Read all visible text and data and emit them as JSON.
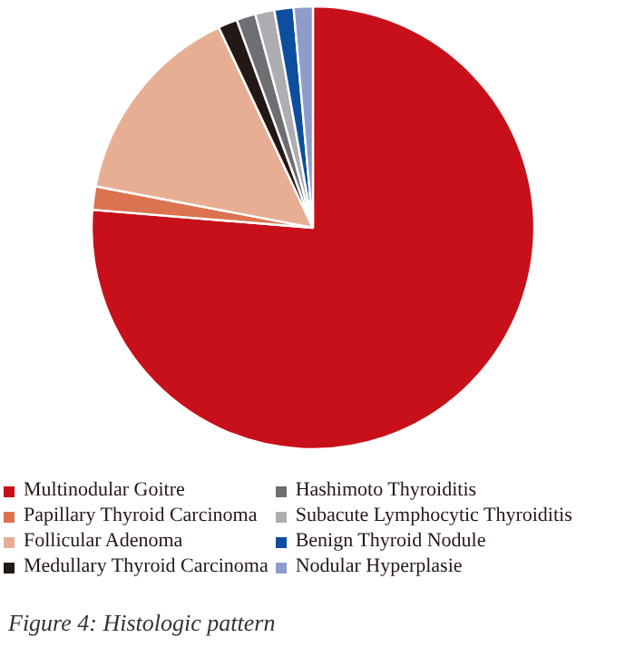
{
  "chart_data": {
    "type": "pie",
    "categories": [
      "Multinodular Goitre",
      "Papillary Thyroid Carcinoma",
      "Follicular Adenoma",
      "Medullary Thyroid Carcinoma",
      "Hashimoto Thyroiditis",
      "Subacute Lymphocytic Thyroiditis",
      "Benign Thyroid Nodule",
      "Nodular Hyperplasie"
    ],
    "values": [
      76.3,
      1.7,
      15.0,
      1.4,
      1.4,
      1.4,
      1.4,
      1.4
    ],
    "colors": [
      "#c8101a",
      "#dc7350",
      "#e8ae94",
      "#231815",
      "#6e6e73",
      "#aeaeb2",
      "#0d4f9e",
      "#8e9ccc"
    ],
    "legend": "bottom",
    "annotations": [
      "Figure 4: Histologic pattern"
    ]
  }
}
